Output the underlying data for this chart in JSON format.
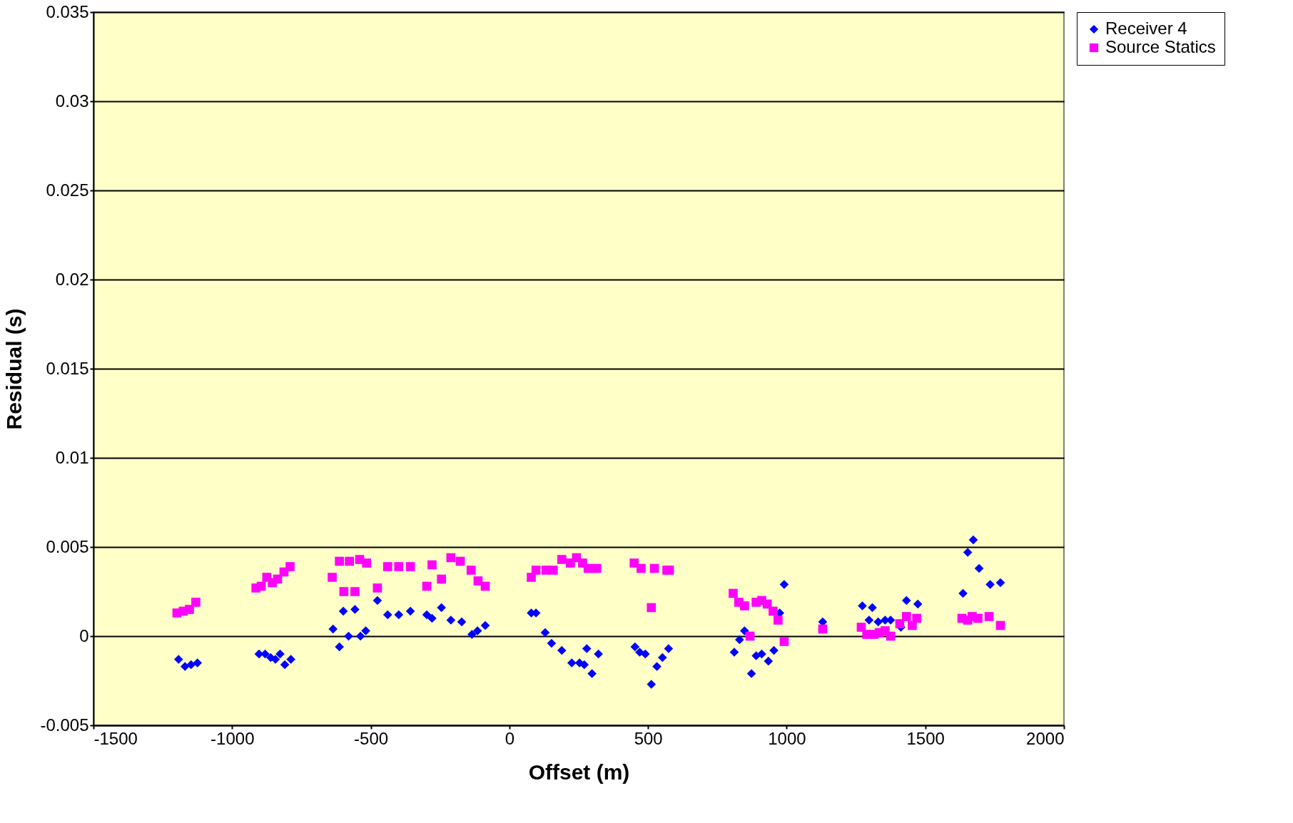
{
  "chart_data": {
    "type": "scatter",
    "xlabel": "Offset (m)",
    "ylabel": "Residual (s)",
    "xlim": [
      -1500,
      2000
    ],
    "xticks": [
      -1500,
      -1000,
      -500,
      0,
      500,
      1000,
      1500,
      2000
    ],
    "ylim": [
      -0.005,
      0.035
    ],
    "yticks": [
      -0.005,
      0,
      0.005,
      0.01,
      0.015,
      0.02,
      0.025,
      0.03,
      0.035
    ],
    "grid": "y",
    "legend": "right",
    "series": [
      {
        "name": "Receiver 4",
        "color": "#0000ff",
        "marker": "diamond",
        "x": [
          -1193,
          -1170,
          -1148,
          -1125,
          -903,
          -881,
          -861,
          -844,
          -827,
          -810,
          -788,
          -636,
          -613,
          -599,
          -580,
          -557,
          -537,
          -518,
          -476,
          -439,
          -399,
          -357,
          -298,
          -279,
          -245,
          -211,
          -172,
          -135,
          -115,
          -87,
          79,
          96,
          129,
          152,
          189,
          225,
          253,
          270,
          279,
          298,
          321,
          453,
          470,
          490,
          512,
          532,
          552,
          574,
          811,
          830,
          848,
          873,
          890,
          910,
          934,
          954,
          975,
          991,
          1130,
          1273,
          1297,
          1309,
          1330,
          1355,
          1375,
          1412,
          1432,
          1473,
          1636,
          1653,
          1673,
          1694,
          1734,
          1771
        ],
        "values": [
          -0.0013,
          -0.0017,
          -0.0016,
          -0.0015,
          -0.001,
          -0.001,
          -0.0012,
          -0.0013,
          -0.001,
          -0.0016,
          -0.0013,
          0.0004,
          -0.0006,
          0.0014,
          0.0,
          0.0015,
          0.0,
          0.0003,
          0.002,
          0.0012,
          0.0012,
          0.0014,
          0.0012,
          0.001,
          0.0016,
          0.0009,
          0.0008,
          0.0001,
          0.0003,
          0.0006,
          0.0013,
          0.0013,
          0.0002,
          -0.0004,
          -0.0008,
          -0.0015,
          -0.0015,
          -0.0016,
          -0.0007,
          -0.0021,
          -0.001,
          -0.0006,
          -0.0009,
          -0.001,
          -0.0027,
          -0.0017,
          -0.0012,
          -0.0007,
          -0.0009,
          -0.0002,
          0.0003,
          -0.0021,
          -0.0011,
          -0.001,
          -0.0014,
          -0.0008,
          0.0013,
          0.0029,
          0.0008,
          0.0017,
          0.0009,
          0.0016,
          0.0008,
          0.0009,
          0.0009,
          0.0005,
          0.002,
          0.0018,
          0.0024,
          0.0047,
          0.0054,
          0.0038,
          0.0029,
          0.003
        ]
      },
      {
        "name": "Source Statics",
        "color": "#ff00ff",
        "marker": "square",
        "x": [
          -1199,
          -1176,
          -1154,
          -1131,
          -914,
          -895,
          -875,
          -855,
          -836,
          -813,
          -791,
          -639,
          -613,
          -597,
          -577,
          -557,
          -540,
          -515,
          -476,
          -439,
          -399,
          -357,
          -298,
          -279,
          -245,
          -211,
          -177,
          -138,
          -113,
          -87,
          79,
          96,
          132,
          158,
          189,
          220,
          242,
          264,
          284,
          315,
          450,
          475,
          512,
          523,
          568,
          577,
          807,
          827,
          848,
          868,
          890,
          910,
          930,
          951,
          969,
          991,
          1130,
          1269,
          1289,
          1314,
          1334,
          1355,
          1375,
          1408,
          1432,
          1453,
          1469,
          1632,
          1653,
          1669,
          1690,
          1730,
          1771
        ],
        "values": [
          0.0013,
          0.0014,
          0.0015,
          0.0019,
          0.0027,
          0.0028,
          0.0033,
          0.003,
          0.0032,
          0.0036,
          0.0039,
          0.0033,
          0.0042,
          0.0025,
          0.0042,
          0.0025,
          0.0043,
          0.0041,
          0.0027,
          0.0039,
          0.0039,
          0.0039,
          0.0028,
          0.004,
          0.0032,
          0.0044,
          0.0042,
          0.0037,
          0.0031,
          0.0028,
          0.0033,
          0.0037,
          0.0037,
          0.0037,
          0.0043,
          0.0041,
          0.0044,
          0.0041,
          0.0038,
          0.0038,
          0.0041,
          0.0038,
          0.0016,
          0.0038,
          0.0037,
          0.0037,
          0.0024,
          0.0019,
          0.0017,
          0.0,
          0.0019,
          0.002,
          0.0018,
          0.0014,
          0.0009,
          -0.0003,
          0.0004,
          0.0005,
          0.0001,
          0.0001,
          0.0002,
          0.0003,
          0.0,
          0.0007,
          0.0011,
          0.0006,
          0.001,
          0.001,
          0.0009,
          0.0011,
          0.001,
          0.0011,
          0.0006
        ]
      }
    ]
  }
}
